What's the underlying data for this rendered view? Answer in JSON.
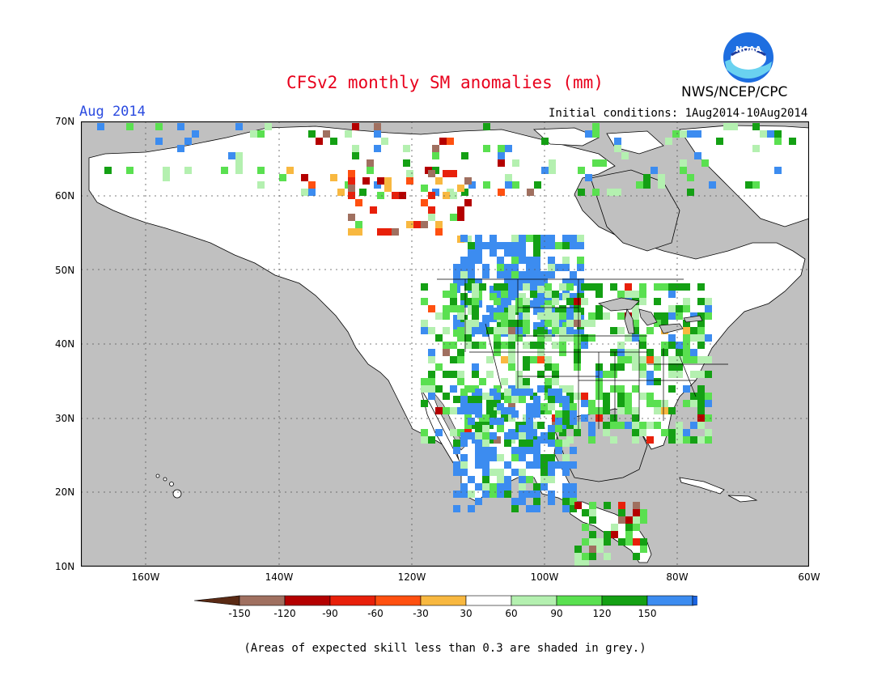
{
  "title": "CFSv2 monthly SM anomalies (mm)",
  "valid_label": "Aug 2014",
  "initial_conditions": "Initial conditions: 1Aug2014-10Aug2014",
  "agency": "NWS/NCEP/CPC",
  "logo_text": "NOAA",
  "lat_labels": [
    "70N",
    "60N",
    "50N",
    "40N",
    "30N",
    "20N",
    "10N"
  ],
  "lon_labels": [
    "160W",
    "140W",
    "120W",
    "100W",
    "80W",
    "60W"
  ],
  "colorbar": {
    "labels": [
      "-150",
      "-120",
      "-90",
      "-60",
      "-30",
      "30",
      "60",
      "90",
      "120",
      "150"
    ],
    "colors": [
      "#5a2a14",
      "#a07060",
      "#b40000",
      "#e8200a",
      "#ff5010",
      "#f8b840",
      "#ffffff",
      "#b4f0b0",
      "#5ae050",
      "#14a014",
      "#3c8cf0",
      "#1c64e0"
    ]
  },
  "colors": {
    "ocean": "#c0c0c0",
    "land": "#ffffff"
  },
  "note": "(Areas of expected skill less than 0.3 are shaded in grey.)"
}
